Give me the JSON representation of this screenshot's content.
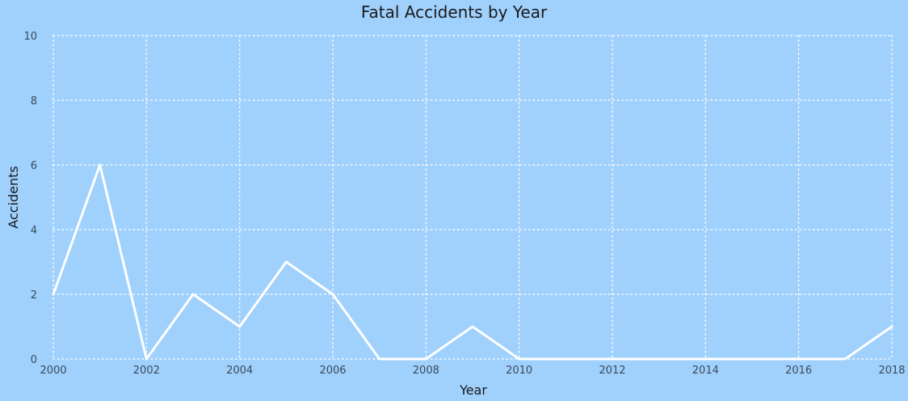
{
  "chart_data": {
    "type": "line",
    "title": "Fatal Accidents by Year",
    "xlabel": "Year",
    "ylabel": "Accidents",
    "x": [
      2000,
      2001,
      2002,
      2003,
      2004,
      2005,
      2006,
      2007,
      2008,
      2009,
      2010,
      2011,
      2012,
      2013,
      2014,
      2015,
      2016,
      2017,
      2018
    ],
    "series": [
      {
        "values": [
          2,
          6,
          0,
          2,
          1,
          3,
          2,
          0,
          0,
          1,
          0,
          0,
          0,
          0,
          0,
          0,
          0,
          0,
          1
        ]
      }
    ],
    "xlim": [
      2000,
      2018
    ],
    "ylim": [
      0,
      10
    ],
    "x_ticks": [
      "2000",
      "2002",
      "2004",
      "2006",
      "2008",
      "2010",
      "2012",
      "2014",
      "2016",
      "2018"
    ],
    "y_ticks": [
      "0",
      "2",
      "4",
      "6",
      "8",
      "10"
    ],
    "grid": true,
    "colors": {
      "background": "#a0d0fc",
      "line": "#ffffff",
      "grid": "#ffffff"
    }
  }
}
